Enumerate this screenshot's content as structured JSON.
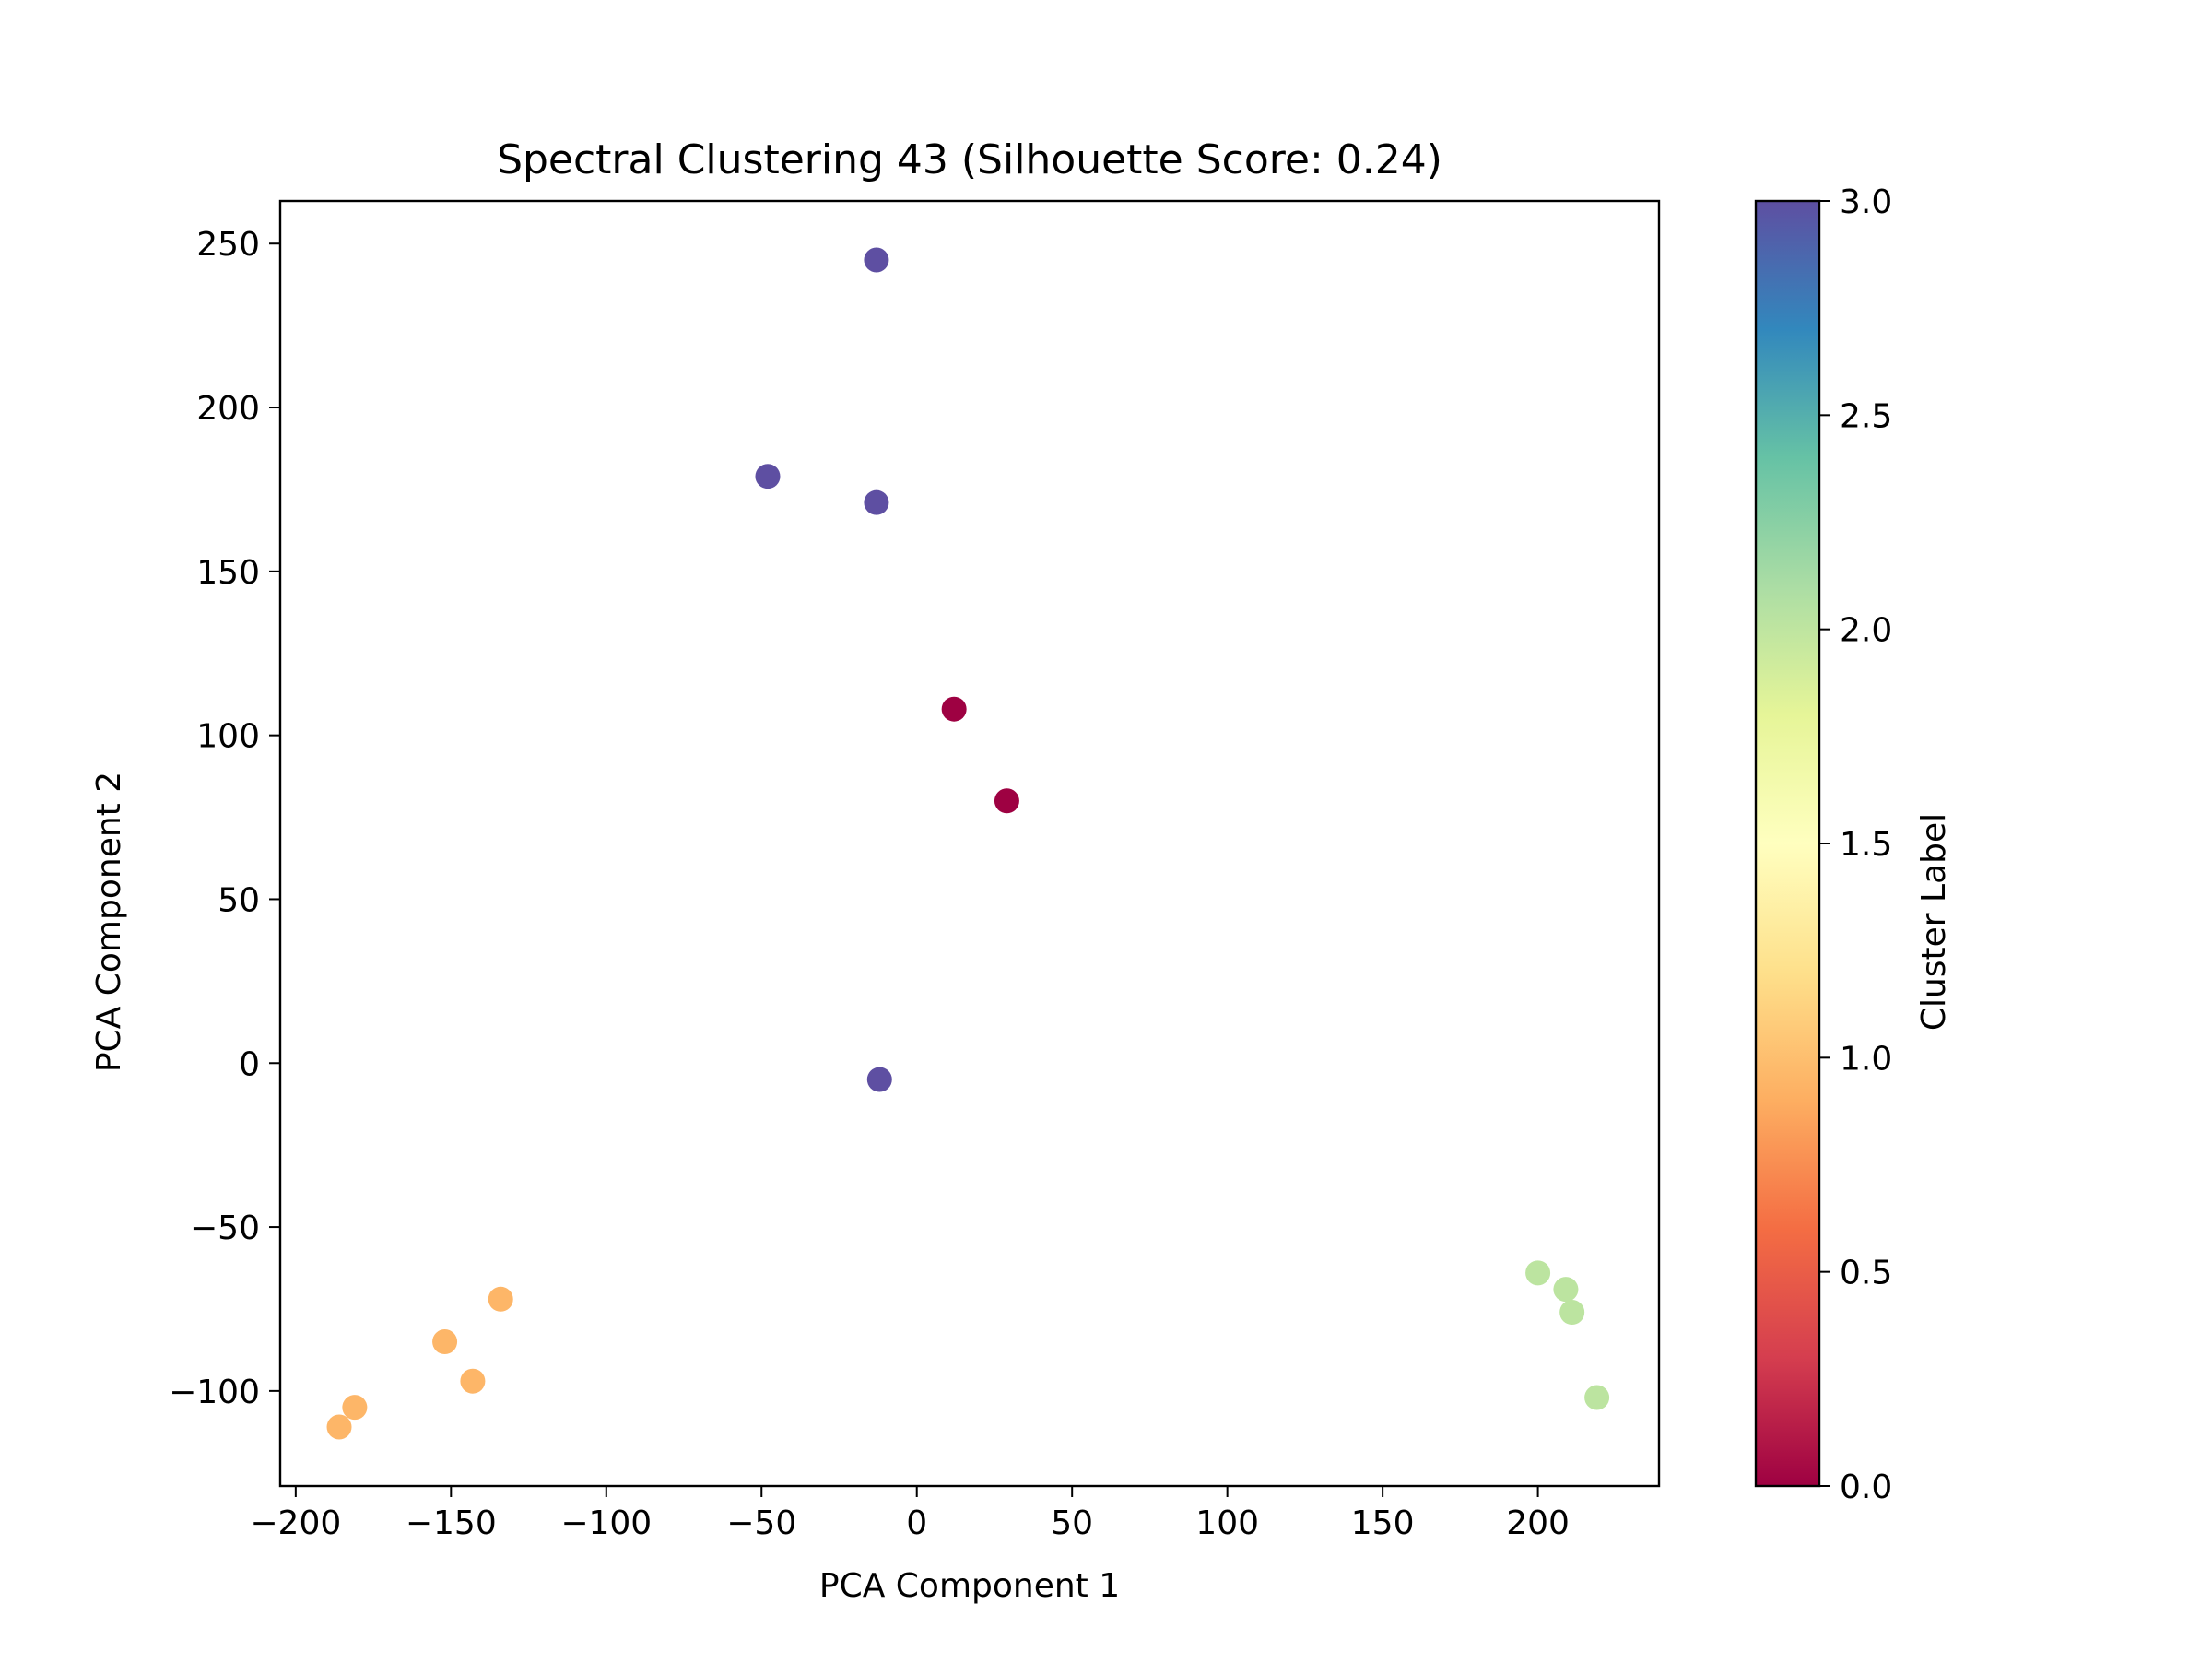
{
  "chart_data": {
    "type": "scatter",
    "title": "Spectral Clustering 43 (Silhouette Score: 0.24)",
    "xlabel": "PCA Component 1",
    "ylabel": "PCA Component 2",
    "xlim": [
      -205,
      239
    ],
    "ylim": [
      -129,
      263
    ],
    "x_ticks": [
      -200,
      -150,
      -100,
      -50,
      0,
      50,
      100,
      150,
      200
    ],
    "x_tick_labels": [
      "−200",
      "−150",
      "−100",
      "−50",
      "0",
      "50",
      "100",
      "150",
      "200"
    ],
    "y_ticks": [
      -100,
      -50,
      0,
      50,
      100,
      150,
      200,
      250
    ],
    "y_tick_labels": [
      "−100",
      "−50",
      "0",
      "50",
      "100",
      "150",
      "200",
      "250"
    ],
    "grid": false,
    "colormap": "Spectral",
    "colorbar": {
      "label": "Cluster Label",
      "range": [
        0.0,
        3.0
      ],
      "ticks": [
        0.0,
        0.5,
        1.0,
        1.5,
        2.0,
        2.5,
        3.0
      ],
      "tick_labels": [
        "0.0",
        "0.5",
        "1.0",
        "1.5",
        "2.0",
        "2.5",
        "3.0"
      ],
      "colors": [
        "#9e0142",
        "#d53e4f",
        "#f46d43",
        "#fdae61",
        "#fee08b",
        "#ffffbf",
        "#e6f598",
        "#abdda4",
        "#66c2a5",
        "#3288bd",
        "#5e4fa2"
      ]
    },
    "points": [
      {
        "x": -13,
        "y": 245,
        "cluster": 3
      },
      {
        "x": -48,
        "y": 179,
        "cluster": 3
      },
      {
        "x": -13,
        "y": 171,
        "cluster": 3
      },
      {
        "x": -12,
        "y": -5,
        "cluster": 3
      },
      {
        "x": 12,
        "y": 108,
        "cluster": 0
      },
      {
        "x": 29,
        "y": 80,
        "cluster": 0
      },
      {
        "x": -134,
        "y": -72,
        "cluster": 1
      },
      {
        "x": -152,
        "y": -85,
        "cluster": 1
      },
      {
        "x": -143,
        "y": -97,
        "cluster": 1
      },
      {
        "x": -181,
        "y": -105,
        "cluster": 1
      },
      {
        "x": -186,
        "y": -111,
        "cluster": 1
      },
      {
        "x": 200,
        "y": -64,
        "cluster": 2
      },
      {
        "x": 209,
        "y": -69,
        "cluster": 2
      },
      {
        "x": 211,
        "y": -76,
        "cluster": 2
      },
      {
        "x": 219,
        "y": -102,
        "cluster": 2
      }
    ],
    "cluster_colors": {
      "0": "#9e0142",
      "1": "#fdb668",
      "2": "#bce4a0",
      "3": "#5e4fa2"
    }
  }
}
